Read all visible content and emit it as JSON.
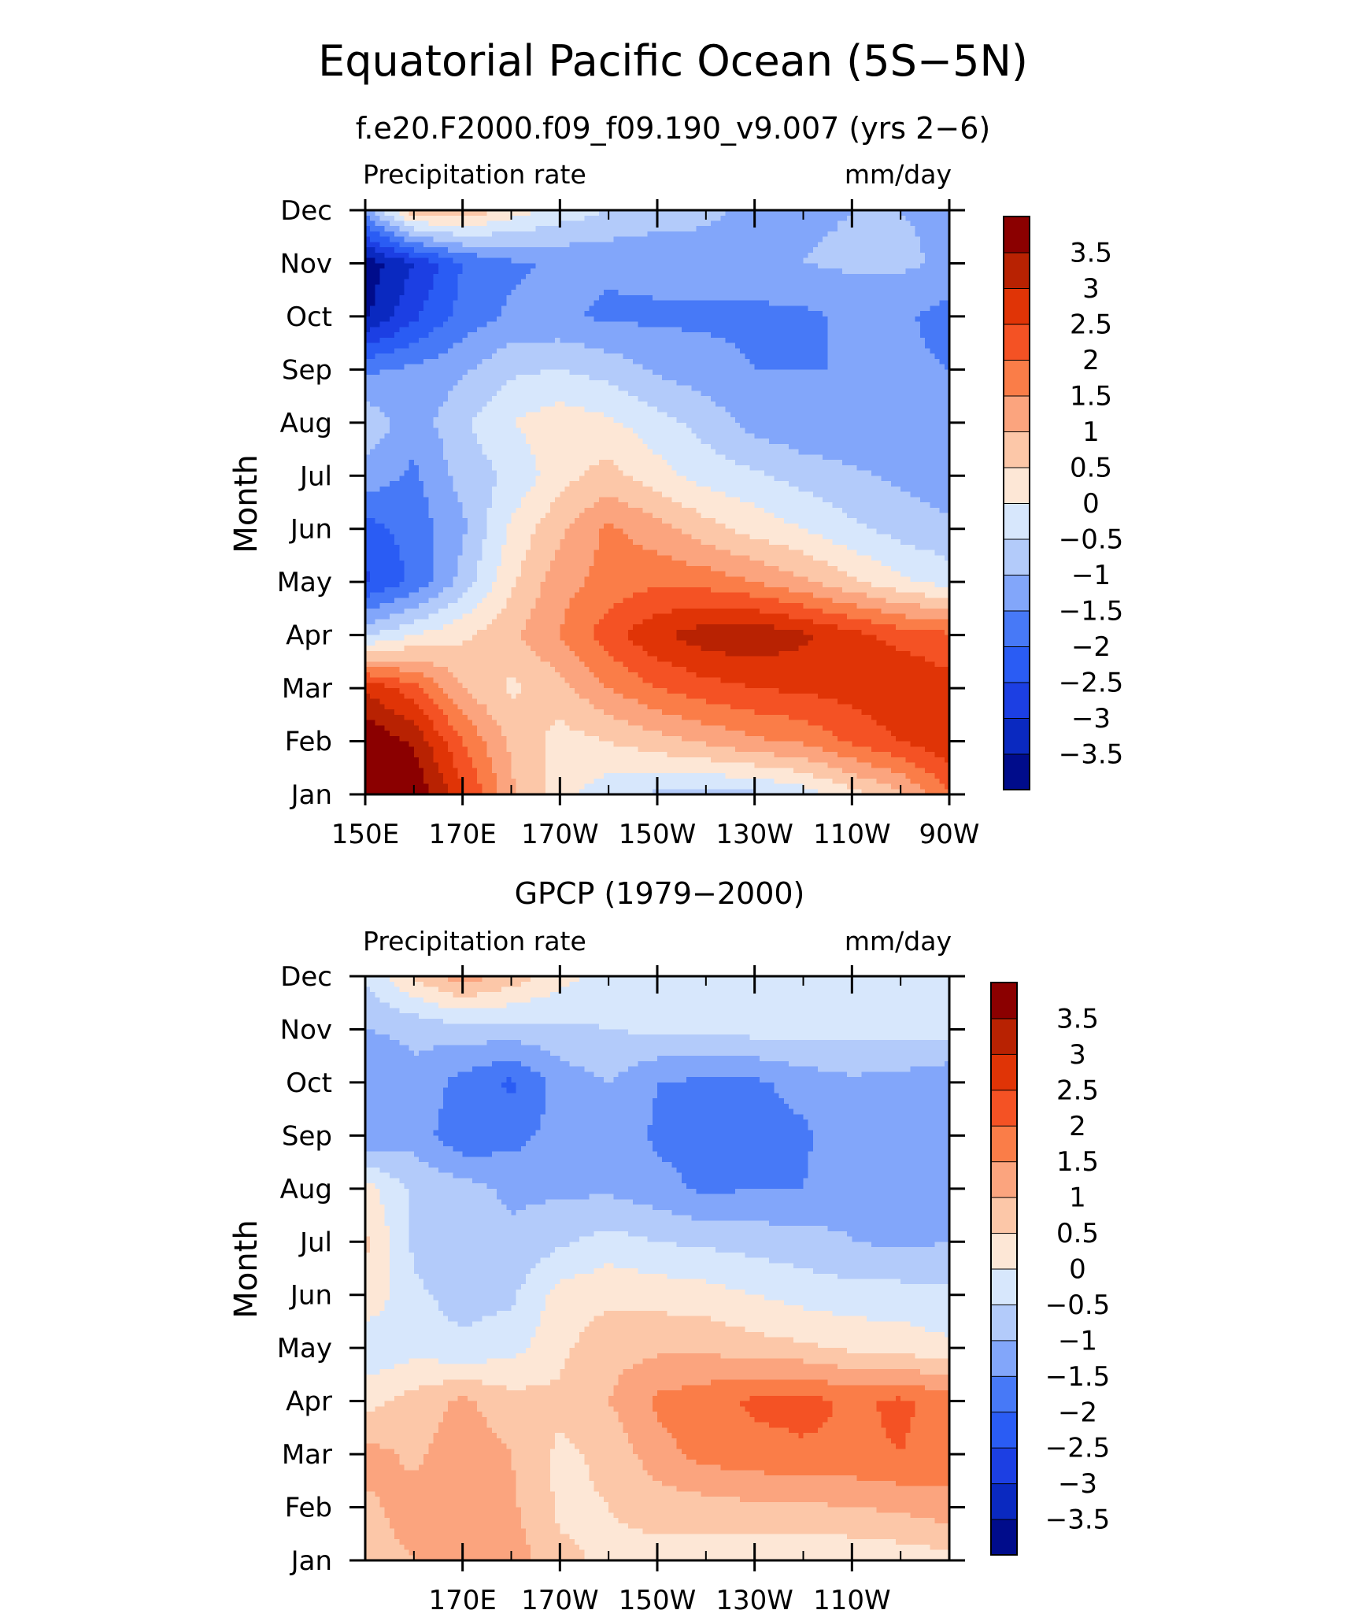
{
  "figure": {
    "title": "Equatorial Pacific Ocean (5S−5N)"
  },
  "chart_data": [
    {
      "type": "heatmap",
      "title": "f.e20.F2000.f09_f09.190_v9.007 (yrs 2−6)",
      "left_label": "Precipitation rate",
      "right_label": "mm/day",
      "ylabel": "Month",
      "xlabel": "",
      "x_ticks": [
        "150E",
        "170E",
        "170W",
        "150W",
        "130W",
        "110W",
        "90W"
      ],
      "x_tick_lon": [
        150,
        170,
        190,
        210,
        230,
        250,
        270
      ],
      "y_ticks": [
        "Jan",
        "Feb",
        "Mar",
        "Apr",
        "May",
        "Jun",
        "Jul",
        "Aug",
        "Sep",
        "Oct",
        "Nov",
        "Dec"
      ],
      "xlim": [
        150,
        270
      ],
      "ylim": [
        1,
        12
      ],
      "colorbar_labels": [
        "3.5",
        "3",
        "2.5",
        "2",
        "1.5",
        "1",
        "0.5",
        "0",
        "−0.5",
        "−1",
        "−1.5",
        "−2",
        "−2.5",
        "−3",
        "−3.5"
      ],
      "levels": [
        -3.5,
        -3,
        -2.5,
        -2,
        -1.5,
        -1,
        -0.5,
        0,
        0.5,
        1,
        1.5,
        2,
        2.5,
        3,
        3.5
      ],
      "colors": [
        "#000c8b",
        "#0a29c0",
        "#1c3fe3",
        "#2a5cf4",
        "#4779f7",
        "#82a6fa",
        "#b3cbfa",
        "#d7e7fc",
        "#fde7d6",
        "#fcc7a8",
        "#fba47e",
        "#fa7d48",
        "#f45224",
        "#e03406",
        "#b82202",
        "#8b0000"
      ],
      "data_lon": [
        150,
        160,
        170,
        180,
        190,
        200,
        210,
        220,
        230,
        240,
        250,
        260,
        270
      ],
      "data_month": [
        1,
        2,
        3,
        4,
        5,
        6,
        7,
        8,
        9,
        10,
        11,
        12
      ],
      "values": [
        [
          4.2,
          4.0,
          2.6,
          1.1,
          0.2,
          -0.3,
          -0.6,
          -0.7,
          -0.6,
          -0.3,
          0.3,
          0.9,
          1.9
        ],
        [
          4.0,
          3.4,
          2.0,
          0.9,
          0.3,
          0.5,
          0.8,
          1.1,
          1.4,
          1.6,
          2.1,
          2.5,
          2.9
        ],
        [
          2.9,
          2.2,
          1.0,
          0.4,
          0.8,
          1.5,
          2.0,
          2.3,
          2.5,
          2.6,
          2.7,
          3.0,
          2.7
        ],
        [
          -0.6,
          0.0,
          0.4,
          0.9,
          1.5,
          2.3,
          2.9,
          3.3,
          3.4,
          3.1,
          2.7,
          2.3,
          2.1
        ],
        [
          -2.6,
          -1.9,
          -0.8,
          0.4,
          1.3,
          1.7,
          1.9,
          1.8,
          1.5,
          1.1,
          0.6,
          0.1,
          -0.2
        ],
        [
          -2.2,
          -1.8,
          -1.1,
          0.1,
          0.9,
          1.6,
          1.2,
          0.7,
          0.3,
          0.0,
          -0.4,
          -0.7,
          -0.9
        ],
        [
          -1.2,
          -1.6,
          -0.8,
          -0.4,
          0.3,
          0.7,
          0.2,
          -0.2,
          -0.4,
          -0.7,
          -0.9,
          -1.1,
          -1.3
        ],
        [
          -0.6,
          -1.3,
          -0.6,
          0.0,
          0.3,
          0.1,
          -0.3,
          -0.7,
          -1.2,
          -1.4,
          -1.4,
          -1.4,
          -1.5
        ],
        [
          -1.6,
          -1.4,
          -1.1,
          -0.6,
          -0.5,
          -0.7,
          -1.1,
          -1.3,
          -1.5,
          -1.5,
          -1.5,
          -1.4,
          -1.5
        ],
        [
          -3.6,
          -2.6,
          -1.8,
          -1.4,
          -1.4,
          -1.6,
          -1.6,
          -1.6,
          -1.6,
          -1.6,
          -1.4,
          -1.4,
          -1.7
        ],
        [
          -3.8,
          -3.0,
          -2.0,
          -1.6,
          -1.4,
          -1.4,
          -1.3,
          -1.2,
          -1.3,
          -1.0,
          -0.9,
          -0.9,
          -1.1
        ],
        [
          -1.3,
          0.9,
          0.9,
          0.3,
          -0.2,
          -0.5,
          -0.8,
          -0.9,
          -1.1,
          -1.1,
          -1.0,
          -1.0,
          -1.1
        ]
      ]
    },
    {
      "type": "heatmap",
      "title": "GPCP (1979−2000)",
      "left_label": "Precipitation rate",
      "right_label": "mm/day",
      "ylabel": "Month",
      "xlabel": "",
      "x_ticks": [
        "170E",
        "170W",
        "150W",
        "130W",
        "110W"
      ],
      "x_tick_lon": [
        170,
        190,
        210,
        230,
        250
      ],
      "y_ticks": [
        "Jan",
        "Feb",
        "Mar",
        "Apr",
        "May",
        "Jun",
        "Jul",
        "Aug",
        "Sep",
        "Oct",
        "Nov",
        "Dec"
      ],
      "xlim": [
        150,
        270
      ],
      "ylim": [
        1,
        12
      ],
      "colorbar_labels": [
        "3.5",
        "3",
        "2.5",
        "2",
        "1.5",
        "1",
        "0.5",
        "0",
        "−0.5",
        "−1",
        "−1.5",
        "−2",
        "−2.5",
        "−3",
        "−3.5"
      ],
      "levels": [
        -3.5,
        -3,
        -2.5,
        -2,
        -1.5,
        -1,
        -0.5,
        0,
        0.5,
        1,
        1.5,
        2,
        2.5,
        3,
        3.5
      ],
      "colors": [
        "#000c8b",
        "#0a29c0",
        "#1c3fe3",
        "#2a5cf4",
        "#4779f7",
        "#82a6fa",
        "#b3cbfa",
        "#d7e7fc",
        "#fde7d6",
        "#fcc7a8",
        "#fba47e",
        "#fa7d48",
        "#f45224",
        "#e03406",
        "#b82202",
        "#8b0000"
      ],
      "data_lon": [
        150,
        160,
        170,
        180,
        190,
        200,
        210,
        220,
        230,
        240,
        250,
        260,
        270
      ],
      "data_month": [
        1,
        2,
        3,
        4,
        5,
        6,
        7,
        8,
        9,
        10,
        11,
        12
      ],
      "values": [
        [
          0.8,
          1.0,
          1.4,
          1.3,
          0.6,
          0.4,
          0.3,
          0.2,
          0.1,
          0.1,
          0.1,
          0.2,
          0.3
        ],
        [
          0.9,
          1.2,
          1.3,
          1.1,
          0.4,
          0.5,
          0.7,
          0.8,
          0.9,
          0.9,
          1.0,
          1.1,
          1.3
        ],
        [
          1.2,
          0.9,
          1.3,
          1.0,
          0.4,
          0.6,
          1.3,
          1.7,
          1.8,
          1.9,
          1.9,
          2.0,
          1.8
        ],
        [
          0.3,
          0.7,
          1.1,
          0.7,
          0.6,
          1.0,
          1.6,
          1.8,
          2.1,
          2.2,
          1.9,
          2.1,
          1.8
        ],
        [
          -0.4,
          -0.2,
          -0.4,
          -0.2,
          0.4,
          0.8,
          0.9,
          0.9,
          0.7,
          0.6,
          0.4,
          0.3,
          0.1
        ],
        [
          0.4,
          -0.4,
          -0.7,
          -0.6,
          0.2,
          0.4,
          0.3,
          0.2,
          0.0,
          -0.2,
          -0.3,
          -0.3,
          -0.4
        ],
        [
          0.6,
          -0.6,
          -0.8,
          -0.9,
          -0.6,
          -0.3,
          -0.5,
          -0.6,
          -0.7,
          -0.8,
          -1.0,
          -1.1,
          -1.0
        ],
        [
          0.2,
          -0.6,
          -0.8,
          -1.1,
          -1.1,
          -1.1,
          -1.3,
          -1.6,
          -1.5,
          -1.5,
          -1.1,
          -1.3,
          -1.2
        ],
        [
          -1.4,
          -1.2,
          -1.9,
          -1.7,
          -1.3,
          -1.1,
          -1.6,
          -1.8,
          -1.7,
          -1.6,
          -1.1,
          -1.4,
          -1.3
        ],
        [
          -1.5,
          -1.1,
          -1.7,
          -2.1,
          -1.3,
          -1.0,
          -1.5,
          -1.6,
          -1.6,
          -1.3,
          -1.1,
          -1.2,
          -1.4
        ],
        [
          -1.0,
          -0.9,
          -0.7,
          -0.7,
          -0.6,
          -0.5,
          -0.4,
          -0.4,
          -0.3,
          -0.3,
          -0.3,
          -0.3,
          -0.3
        ],
        [
          -0.4,
          0.6,
          1.3,
          0.8,
          0.2,
          -0.2,
          -0.3,
          -0.2,
          -0.3,
          -0.4,
          -0.3,
          -0.3,
          -0.3
        ]
      ]
    }
  ]
}
